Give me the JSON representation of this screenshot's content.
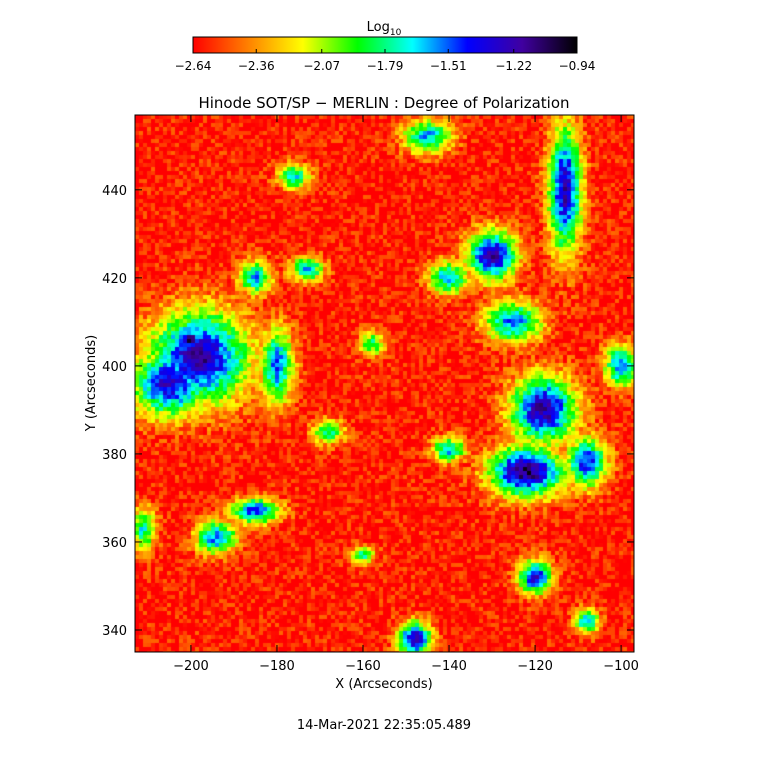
{
  "chart_data": {
    "type": "heatmap",
    "title": "Hinode SOT/SP − MERLIN : Degree of Polarization",
    "xlabel": "X (Arcseconds)",
    "ylabel": "Y (Arcseconds)",
    "xlim": [
      -213,
      -97
    ],
    "ylim": [
      335,
      457
    ],
    "x_ticks": [
      -200,
      -180,
      -160,
      -140,
      -120,
      -100
    ],
    "y_ticks": [
      340,
      360,
      380,
      400,
      420,
      440
    ],
    "x_tick_labels": [
      "−200",
      "−180",
      "−160",
      "−140",
      "−120",
      "−100"
    ],
    "y_tick_labels": [
      "340",
      "360",
      "380",
      "400",
      "420",
      "440"
    ],
    "colorbar": {
      "title_base": "Log",
      "title_sub": "10",
      "range": [
        -2.64,
        -0.94
      ],
      "ticks": [
        -2.64,
        -2.36,
        -2.07,
        -1.79,
        -1.51,
        -1.22,
        -0.94
      ],
      "tick_labels": [
        "−2.64",
        "−2.36",
        "−2.07",
        "−1.79",
        "−1.51",
        "−1.22",
        "−0.94"
      ],
      "colors": [
        "#ff0000",
        "#ff8000",
        "#ffff00",
        "#00ff00",
        "#00ffff",
        "#0000ff",
        "#4000a0",
        "#000000"
      ]
    },
    "background_level": -2.6,
    "features": [
      {
        "x": -198,
        "y": 402,
        "rx": 12,
        "ry": 11,
        "level": -1.2
      },
      {
        "x": -200,
        "y": 406,
        "rx": 2.5,
        "ry": 2,
        "level": -0.94
      },
      {
        "x": -205,
        "y": 396,
        "rx": 9,
        "ry": 8,
        "level": -1.3
      },
      {
        "x": -180,
        "y": 400,
        "rx": 4,
        "ry": 9,
        "level": -1.5
      },
      {
        "x": -185,
        "y": 420,
        "rx": 4,
        "ry": 4,
        "level": -1.6
      },
      {
        "x": -173,
        "y": 422,
        "rx": 4,
        "ry": 3,
        "level": -1.6
      },
      {
        "x": -176,
        "y": 443,
        "rx": 4,
        "ry": 3,
        "level": -1.7
      },
      {
        "x": -185,
        "y": 367,
        "rx": 6,
        "ry": 3,
        "level": -1.4
      },
      {
        "x": -194,
        "y": 361,
        "rx": 5,
        "ry": 4,
        "level": -1.5
      },
      {
        "x": -158,
        "y": 405,
        "rx": 3,
        "ry": 3,
        "level": -1.8
      },
      {
        "x": -148,
        "y": 338,
        "rx": 4,
        "ry": 4,
        "level": -1.2
      },
      {
        "x": -160,
        "y": 357,
        "rx": 3,
        "ry": 2,
        "level": -1.8
      },
      {
        "x": -145,
        "y": 452,
        "rx": 6,
        "ry": 4,
        "level": -1.6
      },
      {
        "x": -130,
        "y": 425,
        "rx": 6,
        "ry": 6,
        "level": -1.2
      },
      {
        "x": -125,
        "y": 410,
        "rx": 7,
        "ry": 5,
        "level": -1.5
      },
      {
        "x": -140,
        "y": 420,
        "rx": 5,
        "ry": 4,
        "level": -1.6
      },
      {
        "x": -113,
        "y": 440,
        "rx": 4,
        "ry": 15,
        "level": -1.25
      },
      {
        "x": -100,
        "y": 400,
        "rx": 4,
        "ry": 5,
        "level": -1.5
      },
      {
        "x": -118,
        "y": 390,
        "rx": 8,
        "ry": 8,
        "level": -1.2
      },
      {
        "x": -122,
        "y": 376,
        "rx": 9,
        "ry": 6,
        "level": -1.1
      },
      {
        "x": -108,
        "y": 378,
        "rx": 5,
        "ry": 6,
        "level": -1.4
      },
      {
        "x": -140,
        "y": 381,
        "rx": 4,
        "ry": 3,
        "level": -1.6
      },
      {
        "x": -120,
        "y": 352,
        "rx": 4,
        "ry": 4,
        "level": -1.3
      },
      {
        "x": -108,
        "y": 342,
        "rx": 3,
        "ry": 3,
        "level": -1.6
      },
      {
        "x": -211,
        "y": 363,
        "rx": 3,
        "ry": 5,
        "level": -1.7
      },
      {
        "x": -168,
        "y": 385,
        "rx": 4,
        "ry": 3,
        "level": -1.8
      }
    ]
  },
  "footer": {
    "timestamp": "14-Mar-2021 22:35:05.489"
  }
}
